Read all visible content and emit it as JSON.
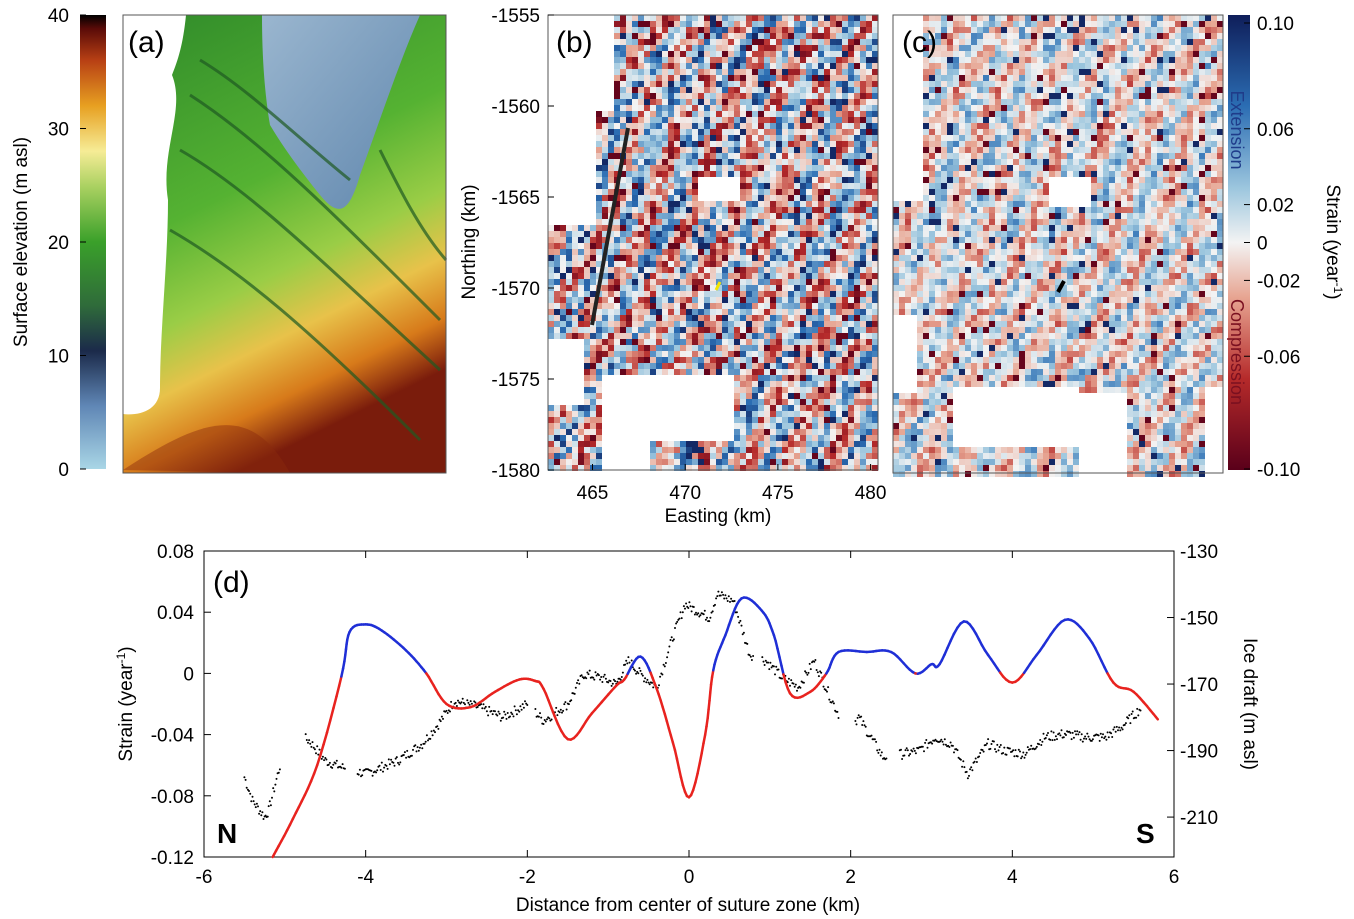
{
  "panel_a": {
    "label": "(a)",
    "colorbar": {
      "title": "Surface elevation (m asl)",
      "ticks": [
        "40",
        "30",
        "20",
        "10",
        "0"
      ],
      "tick_values": [
        40,
        30,
        20,
        10,
        0
      ],
      "range": [
        0,
        40
      ]
    }
  },
  "panel_b": {
    "label": "(b)",
    "xlabel": "Easting (km)",
    "ylabel": "Northing (km)",
    "xticks": [
      "465",
      "470",
      "475",
      "480"
    ],
    "xtick_values": [
      465,
      470,
      475,
      480
    ],
    "yticks": [
      "-1555",
      "-1560",
      "-1565",
      "-1570",
      "-1575",
      "-1580"
    ],
    "ytick_values": [
      -1555,
      -1560,
      -1565,
      -1570,
      -1575,
      -1580
    ],
    "xlim": [
      462.6,
      480.4
    ],
    "ylim": [
      -1580,
      -1555
    ]
  },
  "panel_c": {
    "label": "(c)"
  },
  "strain_colorbar": {
    "title": "Strain (year",
    "title_sup": "-1",
    "title_end": ")",
    "ticks": [
      "0.10",
      "0.06",
      "0.02",
      "0",
      "-0.02",
      "-0.06",
      "-0.10"
    ],
    "tick_values": [
      0.1,
      0.06,
      0.02,
      0,
      -0.02,
      -0.06,
      -0.1
    ],
    "extension_label": "Extension",
    "compression_label": "Compression",
    "colors": {
      "positive": "#1a2a6c",
      "zero": "#f2f2f2",
      "negative": "#67001f"
    }
  },
  "chart_data": {
    "type": "line",
    "panel_label": "(d)",
    "xlabel": "Distance from center of suture zone (km)",
    "ylabel_left": "Strain (year",
    "ylabel_left_sup": "-1",
    "ylabel_left_end": ")",
    "ylabel_right": "Ice draft (m asl)",
    "xlim": [
      -6,
      6
    ],
    "ylim_left": [
      -0.12,
      0.08
    ],
    "ylim_right": [
      -222,
      -130
    ],
    "xticks": [
      "-6",
      "-4",
      "-2",
      "0",
      "2",
      "4",
      "6"
    ],
    "xtick_values": [
      -6,
      -4,
      -2,
      0,
      2,
      4,
      6
    ],
    "yticks_left": [
      "0.08",
      "0.04",
      "0",
      "-0.04",
      "-0.08",
      "-0.12"
    ],
    "ytick_left_values": [
      0.08,
      0.04,
      0,
      -0.04,
      -0.08,
      -0.12
    ],
    "yticks_right": [
      "-130",
      "-150",
      "-170",
      "-190",
      "-210"
    ],
    "ytick_right_values": [
      -130,
      -150,
      -170,
      -190,
      -210
    ],
    "corner_labels": {
      "left": "N",
      "right": "S"
    },
    "colors": {
      "extension": "#1f2fd6",
      "compression": "#e8231f",
      "draft": "#000000"
    },
    "series": [
      {
        "x": [
          -5.15,
          -4.9,
          -4.6,
          -4.3,
          -4.2,
          -4.0,
          -3.8,
          -3.5,
          -3.25,
          -3.0,
          -2.7,
          -2.4,
          -2.1,
          -1.9,
          -1.8,
          -1.5,
          -1.2,
          -0.9,
          -0.8,
          -0.6,
          -0.4,
          -0.2,
          0.0,
          0.2,
          0.3,
          0.45,
          0.65,
          0.9,
          1.05,
          1.25,
          1.5,
          1.7,
          1.85,
          2.2,
          2.5,
          2.8,
          3.0,
          3.1,
          3.4,
          3.7,
          4.0,
          4.3,
          4.65,
          4.95,
          5.25,
          5.5,
          5.8
        ],
        "y": [
          -0.12,
          -0.095,
          -0.06,
          -0.002,
          0.027,
          0.032,
          0.028,
          0.015,
          0.0,
          -0.02,
          -0.022,
          -0.012,
          -0.004,
          -0.005,
          -0.01,
          -0.043,
          -0.026,
          -0.008,
          -0.004,
          0.011,
          -0.01,
          -0.045,
          -0.081,
          -0.04,
          0.002,
          0.025,
          0.049,
          0.041,
          0.025,
          -0.013,
          -0.012,
          0.0,
          0.014,
          0.014,
          0.014,
          0.0,
          0.006,
          0.006,
          0.034,
          0.012,
          -0.006,
          0.012,
          0.035,
          0.023,
          -0.006,
          -0.012,
          -0.03
        ]
      },
      {
        "name_hidden": "draft",
        "x": [
          -5.5,
          -5.4,
          -5.25,
          -5.2,
          -4.95,
          -4.7,
          -4.5,
          -4.3,
          -4.0,
          -3.6,
          -3.3,
          -3.1,
          -2.9,
          -2.6,
          -2.3,
          -2.0,
          -1.8,
          -1.5,
          -1.3,
          -1.1,
          -0.9,
          -0.75,
          -0.6,
          -0.4,
          -0.2,
          -0.05,
          0.1,
          0.25,
          0.35,
          0.55,
          0.75,
          0.95,
          1.15,
          1.35,
          1.55,
          1.75,
          1.95,
          2.1,
          2.4,
          2.65,
          2.85,
          3.05,
          3.25,
          3.45,
          3.7,
          3.9,
          4.15,
          4.4,
          4.65,
          4.9,
          5.15,
          5.35,
          5.6
        ],
        "y": [
          -198,
          -205,
          -210,
          -208,
          -184,
          -187,
          -193,
          -195,
          -197,
          -193,
          -188,
          -182,
          -175,
          -177,
          -180,
          -176,
          -181,
          -176,
          -167,
          -168,
          -170,
          -163,
          -167,
          -171,
          -156,
          -146,
          -148,
          -150,
          -143,
          -145,
          -161,
          -163,
          -168,
          -171,
          -163,
          -174,
          -184,
          -180,
          -192,
          -191,
          -190,
          -186,
          -188,
          -197,
          -188,
          -190,
          -191,
          -186,
          -185,
          -186,
          -186,
          -183,
          -177
        ]
      }
    ]
  }
}
